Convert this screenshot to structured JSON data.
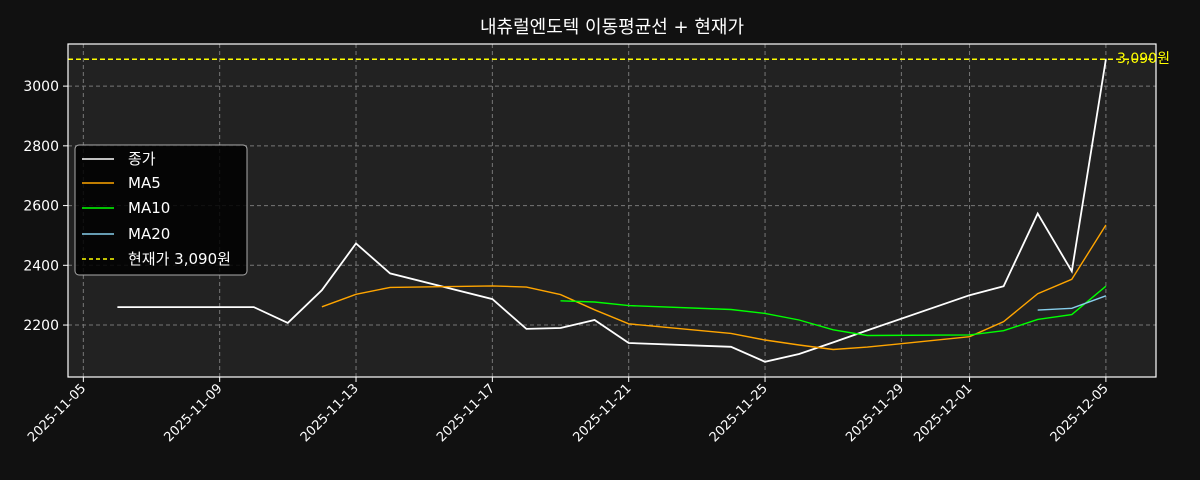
{
  "chart_data": {
    "type": "line",
    "title": "내츄럴엔도텍 이동평균선 + 현재가",
    "xlabel": "",
    "ylabel": "",
    "x_ticks": [
      "2025-11-05",
      "2025-11-09",
      "2025-11-13",
      "2025-11-17",
      "2025-11-21",
      "2025-11-25",
      "2025-11-29",
      "2025-12-01",
      "2025-12-05"
    ],
    "y_ticks": [
      2200,
      2400,
      2600,
      2800,
      3000
    ],
    "xlim": [
      "2025-11-04.55",
      "2025-12-06.47"
    ],
    "ylim": [
      2026,
      3141
    ],
    "grid": true,
    "legend_position": "center-left",
    "x": [
      "2025-11-06",
      "2025-11-07",
      "2025-11-10",
      "2025-11-11",
      "2025-11-12",
      "2025-11-13",
      "2025-11-14",
      "2025-11-17",
      "2025-11-18",
      "2025-11-19",
      "2025-11-20",
      "2025-11-21",
      "2025-11-24",
      "2025-11-25",
      "2025-11-26",
      "2025-11-27",
      "2025-11-28",
      "2025-12-01",
      "2025-12-02",
      "2025-12-03",
      "2025-12-04",
      "2025-12-05"
    ],
    "series": [
      {
        "name": "종가",
        "color": "#ffffff",
        "values": [
          2260,
          2260,
          2260,
          2207,
          2317,
          2473,
          2373,
          2287,
          2187,
          2190,
          2217,
          2140,
          2127,
          2077,
          2103,
          2142,
          2182,
          2300,
          2330,
          2573,
          2380,
          3090
        ]
      },
      {
        "name": "MA5",
        "color": "#ffa500",
        "values": [
          null,
          null,
          null,
          null,
          2261,
          2303,
          2326,
          2331,
          2327,
          2302,
          2251,
          2204,
          2172,
          2150,
          2133,
          2118,
          2126,
          2161,
          2211,
          2305,
          2353,
          2535
        ]
      },
      {
        "name": "MA10",
        "color": "#00ff00",
        "values": [
          null,
          null,
          null,
          null,
          null,
          null,
          null,
          null,
          null,
          2281,
          2277,
          2265,
          2252,
          2239,
          2217,
          2184,
          2165,
          2167,
          2181,
          2219,
          2235,
          2330
        ]
      },
      {
        "name": "MA20",
        "color": "#87ceeb",
        "values": [
          null,
          null,
          null,
          null,
          null,
          null,
          null,
          null,
          null,
          null,
          null,
          null,
          null,
          null,
          null,
          null,
          null,
          null,
          null,
          2250,
          2256,
          2298
        ]
      }
    ],
    "reference_line": {
      "name": "현재가 3,090원",
      "value": 3090,
      "color": "#ffff00",
      "style": "dashed",
      "annotation": "3,090원"
    }
  }
}
